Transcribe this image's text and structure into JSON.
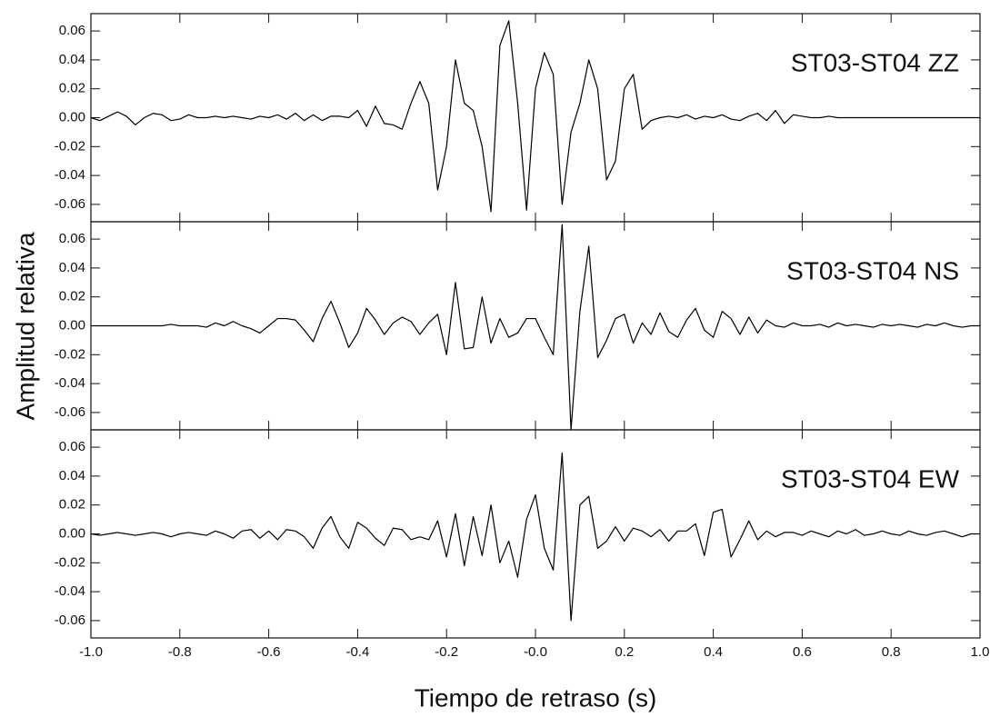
{
  "chart_data": {
    "type": "line",
    "layout": "stacked-panels",
    "y_label": "Amplitud relativa",
    "x_label": "Tiempo de retraso (s)",
    "x": [
      -1,
      -0.98,
      -0.96,
      -0.94,
      -0.92,
      -0.9,
      -0.88,
      -0.86,
      -0.84,
      -0.82,
      -0.8,
      -0.78,
      -0.76,
      -0.74,
      -0.72,
      -0.7,
      -0.68,
      -0.66,
      -0.64,
      -0.62,
      -0.6,
      -0.58,
      -0.56,
      -0.54,
      -0.52,
      -0.5,
      -0.48,
      -0.46,
      -0.44,
      -0.42,
      -0.4,
      -0.38,
      -0.36,
      -0.34,
      -0.32,
      -0.3,
      -0.28,
      -0.26,
      -0.24,
      -0.22,
      -0.2,
      -0.18,
      -0.16,
      -0.14,
      -0.12,
      -0.1,
      -0.08,
      -0.06,
      -0.04,
      -0.02,
      0,
      0.02,
      0.04,
      0.06,
      0.08,
      0.1,
      0.12,
      0.14,
      0.16,
      0.18,
      0.2,
      0.22,
      0.24,
      0.26,
      0.28,
      0.3,
      0.32,
      0.34,
      0.36,
      0.38,
      0.4,
      0.42,
      0.44,
      0.46,
      0.48,
      0.5,
      0.52,
      0.54,
      0.56,
      0.58,
      0.6,
      0.62,
      0.64,
      0.66,
      0.68,
      0.7,
      0.72,
      0.74,
      0.76,
      0.78,
      0.8,
      0.82,
      0.84,
      0.86,
      0.88,
      0.9,
      0.92,
      0.94,
      0.96,
      0.98,
      1
    ],
    "xlim": [
      -1,
      1
    ],
    "xticks": [
      {
        "value": -1,
        "label": "-1.0"
      },
      -0.8,
      -0.6,
      -0.4,
      -0.2,
      {
        "value": 0,
        "label": "-0.0"
      },
      0.2,
      0.4,
      0.6,
      0.8,
      {
        "value": 1,
        "label": "1.0"
      }
    ],
    "ylim": [
      -0.072,
      0.072
    ],
    "yticks": [
      0.06,
      0.04,
      0.02,
      {
        "value": 0,
        "label": "0.00"
      },
      -0.02,
      -0.04,
      -0.06
    ],
    "series": [
      {
        "name": "ST03-ST04 ZZ",
        "color": "#000000",
        "values": [
          0,
          -0.002,
          0.001,
          0.004,
          0.001,
          -0.005,
          0,
          0.003,
          0.002,
          -0.002,
          -0.001,
          0.002,
          0,
          0,
          0.001,
          0,
          0.001,
          0,
          -0.001,
          0.001,
          0,
          0.002,
          -0.001,
          0.003,
          -0.002,
          0.002,
          -0.002,
          0.001,
          0.001,
          0,
          0.005,
          -0.006,
          0.008,
          -0.004,
          -0.005,
          -0.008,
          0.01,
          0.025,
          0.01,
          -0.05,
          -0.02,
          0.04,
          0.01,
          0.005,
          -0.02,
          -0.065,
          0.05,
          0.067,
          0.01,
          -0.064,
          0.02,
          0.045,
          0.03,
          -0.06,
          -0.01,
          0.01,
          0.04,
          0.02,
          -0.043,
          -0.03,
          0.02,
          0.03,
          -0.008,
          -0.002,
          0,
          0.001,
          0,
          0.002,
          -0.001,
          0.001,
          0,
          0.002,
          -0.001,
          -0.002,
          0.001,
          0.003,
          -0.002,
          0.005,
          -0.004,
          0.002,
          0.001,
          0,
          0,
          0.001,
          0,
          0,
          0,
          0,
          0,
          0,
          0,
          0,
          0,
          0,
          0,
          0,
          0,
          0,
          0,
          0,
          0
        ]
      },
      {
        "name": "ST03-ST04 NS",
        "color": "#000000",
        "values": [
          0,
          0,
          0,
          0,
          0,
          0,
          0,
          0,
          0,
          0.001,
          0,
          0,
          0,
          -0.001,
          0.002,
          0,
          0.003,
          0,
          -0.002,
          -0.005,
          0,
          0.005,
          0.005,
          0.004,
          -0.003,
          -0.011,
          0.005,
          0.017,
          0.002,
          -0.015,
          -0.005,
          0.012,
          0.004,
          -0.006,
          0.002,
          0.006,
          0.003,
          -0.006,
          0.002,
          0.008,
          -0.02,
          0.03,
          -0.016,
          -0.015,
          0.02,
          -0.012,
          0.005,
          -0.008,
          -0.005,
          0.005,
          0.005,
          -0.008,
          -0.02,
          0.07,
          -0.072,
          0.01,
          0.055,
          -0.022,
          -0.01,
          0.005,
          0.008,
          -0.012,
          0.002,
          -0.006,
          0.009,
          -0.004,
          -0.008,
          0.004,
          0.012,
          -0.003,
          -0.008,
          0.01,
          0.005,
          -0.006,
          0.006,
          -0.005,
          0.004,
          0,
          -0.001,
          0.002,
          0,
          0,
          0.001,
          -0.001,
          0.002,
          0,
          0.001,
          0,
          -0.001,
          0.001,
          0,
          0.001,
          0,
          -0.001,
          0.001,
          0,
          0.002,
          0,
          -0.001,
          0,
          0
        ]
      },
      {
        "name": "ST03-ST04 EW",
        "color": "#000000",
        "values": [
          0,
          -0.001,
          0,
          0.001,
          0,
          -0.001,
          0,
          0.001,
          0,
          -0.002,
          0,
          0.001,
          0,
          -0.001,
          0.002,
          0,
          -0.003,
          0.002,
          0.003,
          -0.003,
          0.002,
          -0.004,
          0.003,
          0.002,
          -0.002,
          -0.01,
          0.004,
          0.012,
          -0.002,
          -0.01,
          0.008,
          0.004,
          -0.003,
          -0.008,
          0.004,
          0.003,
          -0.004,
          -0.002,
          -0.004,
          0.009,
          -0.016,
          0.014,
          -0.022,
          0.012,
          -0.015,
          0.02,
          -0.02,
          -0.005,
          -0.03,
          0.01,
          0.027,
          -0.01,
          -0.025,
          0.056,
          -0.06,
          0.02,
          0.026,
          -0.01,
          -0.005,
          0.005,
          -0.005,
          0.004,
          0.002,
          -0.002,
          0.003,
          -0.005,
          0.002,
          0.002,
          0.007,
          -0.015,
          0.015,
          0.017,
          -0.016,
          -0.004,
          0.009,
          -0.004,
          0.002,
          -0.002,
          0.001,
          0.001,
          -0.001,
          0.002,
          0,
          -0.002,
          0.002,
          0,
          0.003,
          -0.001,
          0,
          0.002,
          0,
          -0.001,
          0.002,
          0,
          -0.001,
          0.001,
          0.002,
          0,
          -0.002,
          0,
          0
        ]
      }
    ]
  }
}
